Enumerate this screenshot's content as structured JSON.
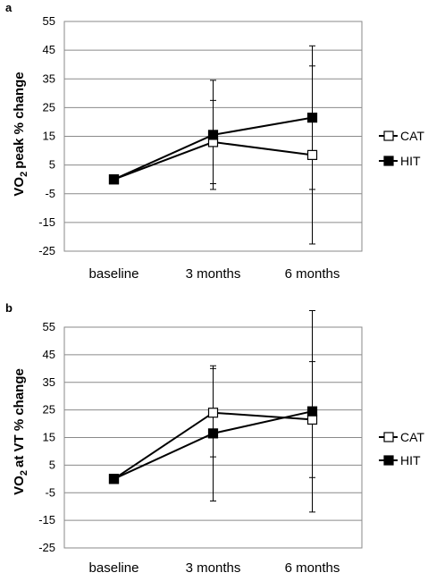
{
  "chart_data": [
    {
      "panel": "a",
      "type": "line",
      "ylabel_parts": [
        "VO",
        "2",
        "peak % change"
      ],
      "categories": [
        "baseline",
        "3 months",
        "6 months"
      ],
      "ylim": [
        -25,
        55
      ],
      "yticks": [
        -25,
        -15,
        -5,
        5,
        15,
        25,
        35,
        45,
        55
      ],
      "grid": true,
      "legend_position": "right",
      "series": [
        {
          "name": "CAT",
          "marker": "open-square",
          "values": [
            0,
            13,
            8.5
          ],
          "error": [
            null,
            14.5,
            31
          ]
        },
        {
          "name": "HIT",
          "marker": "filled-square",
          "values": [
            0,
            15.5,
            21.5
          ],
          "error": [
            null,
            19,
            25
          ]
        }
      ]
    },
    {
      "panel": "b",
      "type": "line",
      "ylabel_parts": [
        "VO",
        "2",
        "at VT % change"
      ],
      "categories": [
        "baseline",
        "3 months",
        "6 months"
      ],
      "ylim": [
        -25,
        55
      ],
      "yticks": [
        -25,
        -15,
        -5,
        5,
        15,
        25,
        35,
        45,
        55
      ],
      "grid": true,
      "legend_position": "right",
      "series": [
        {
          "name": "CAT",
          "marker": "open-square",
          "values": [
            0,
            24,
            21.5
          ],
          "error": [
            null,
            16,
            21
          ]
        },
        {
          "name": "HIT",
          "marker": "filled-square",
          "values": [
            0,
            16.5,
            24.5
          ],
          "error": [
            null,
            24.5,
            36.5
          ]
        }
      ]
    }
  ]
}
